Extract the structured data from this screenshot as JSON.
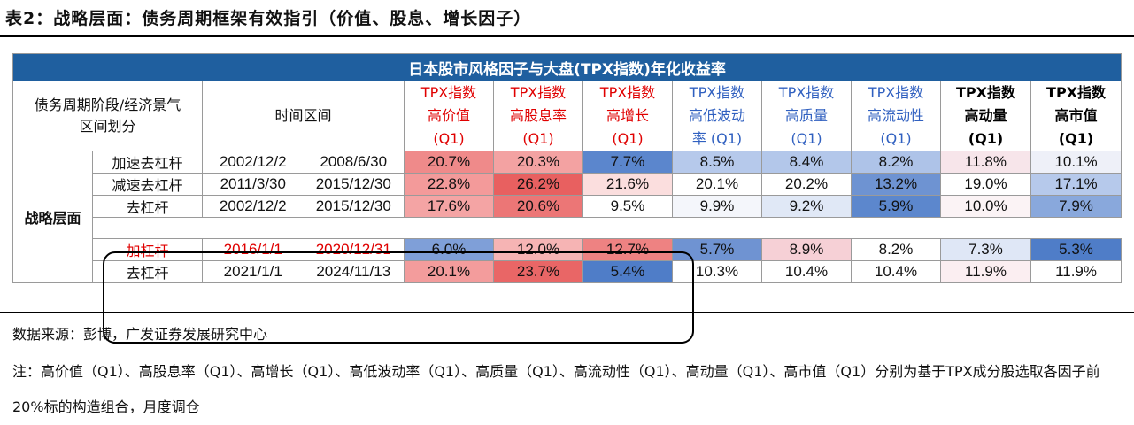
{
  "title": "表2：战略层面：债务周期框架有效指引（价值、股息、增长因子）",
  "table": {
    "banner": "日本股市风格因子与大盘(TPX指数)年化收益率",
    "header_stage": "债务周期阶段/经济景气区间划分",
    "header_period": "时间区间",
    "factors": [
      {
        "name": "TPX指数高价值(Q1)",
        "line1": "TPX指数",
        "line2": "高价值",
        "line3": "(Q1)"
      },
      {
        "name": "TPX指数高股息率(Q1)",
        "line1": "TPX指数",
        "line2": "高股息率",
        "line3": "(Q1)"
      },
      {
        "name": "TPX指数高增长(Q1)",
        "line1": "TPX指数",
        "line2": "高增长",
        "line3": "(Q1)"
      },
      {
        "name": "TPX指数高低波动率(Q1)",
        "line1": "TPX指数",
        "line2": "高低波动",
        "line3": "率 (Q1)"
      },
      {
        "name": "TPX指数高质量(Q1)",
        "line1": "TPX指数",
        "line2": "高质量",
        "line3": "(Q1)"
      },
      {
        "name": "TPX指数高流动性(Q1)",
        "line1": "TPX指数",
        "line2": "高流动性",
        "line3": "(Q1)"
      },
      {
        "name": "TPX指数高动量(Q1)",
        "line1": "TPX指数",
        "line2": "高动量",
        "line3": "(Q1)"
      },
      {
        "name": "TPX指数高市值(Q1)",
        "line1": "TPX指数",
        "line2": "高市值",
        "line3": "(Q1)"
      }
    ],
    "group_label": "战略层面",
    "rows": [
      {
        "stage": "加速去杠杆",
        "start": "2002/12/2",
        "end": "2008/6/30",
        "values": [
          "20.7%",
          "20.3%",
          "7.7%",
          "8.5%",
          "8.4%",
          "8.2%",
          "11.8%",
          "10.1%"
        ]
      },
      {
        "stage": "减速去杠杆",
        "start": "2011/3/30",
        "end": "2015/12/30",
        "values": [
          "22.8%",
          "26.2%",
          "21.6%",
          "20.1%",
          "20.2%",
          "13.2%",
          "19.0%",
          "17.1%"
        ]
      },
      {
        "stage": "去杠杆",
        "start": "2002/12/2",
        "end": "2015/12/30",
        "values": [
          "17.6%",
          "20.6%",
          "9.5%",
          "9.9%",
          "9.2%",
          "5.9%",
          "10.0%",
          "7.9%"
        ]
      },
      {
        "stage": "加杠杆",
        "start": "2016/1/1",
        "end": "2020/12/31",
        "values": [
          "6.0%",
          "12.0%",
          "12.7%",
          "5.7%",
          "8.9%",
          "8.2%",
          "7.3%",
          "5.3%"
        ]
      },
      {
        "stage": "去杠杆",
        "start": "2021/1/1",
        "end": "2024/11/13",
        "values": [
          "20.1%",
          "23.7%",
          "5.4%",
          "10.3%",
          "10.4%",
          "10.4%",
          "11.9%",
          "11.9%"
        ]
      }
    ],
    "colors": {
      "banner": "#1f5f9f",
      "red_text": "#e00000",
      "blue_text": "#3060c0"
    }
  },
  "source": "数据来源：彭博，广发证券发展研究中心",
  "note": "注：高价值（Q1）、高股息率（Q1）、高增长（Q1）、高低波动率（Q1）、高质量（Q1）、高流动性（Q1）、高动量（Q1）、高市值（Q1）分别为基于TPX成分股选取各因子前20%标的构造组合，月度调仓"
}
